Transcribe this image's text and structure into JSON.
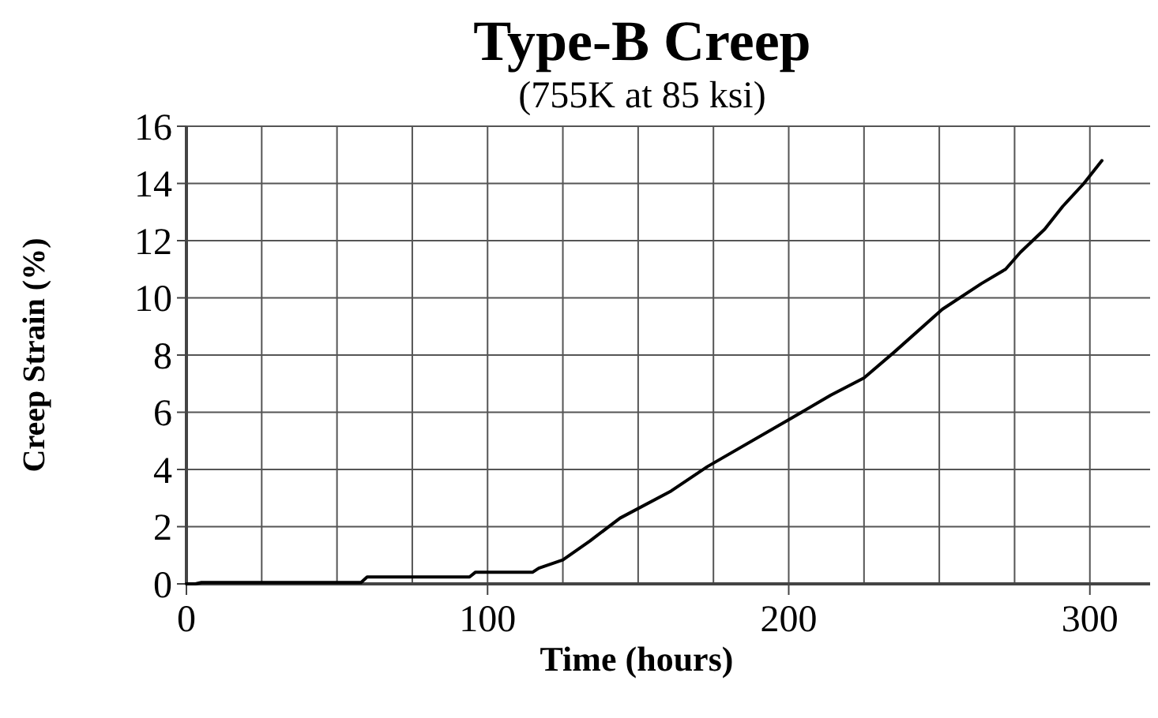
{
  "chart_data": {
    "type": "line",
    "title": "Type-B Creep",
    "subtitle": "(755K at 85 ksi)",
    "xlabel": "Time (hours)",
    "ylabel": "Creep Strain (%)",
    "xlim": [
      0,
      320
    ],
    "xticks": [
      0,
      {
        "value": 25,
        "label": null
      },
      {
        "value": 50,
        "label": null
      },
      {
        "value": 75,
        "label": null
      },
      100,
      {
        "value": 125,
        "label": null
      },
      {
        "value": 150,
        "label": null
      },
      {
        "value": 175,
        "label": null
      },
      200,
      {
        "value": 225,
        "label": null
      },
      {
        "value": 250,
        "label": null
      },
      {
        "value": 275,
        "label": null
      },
      300
    ],
    "ylim": [
      0,
      16
    ],
    "yticks": [
      0,
      2,
      4,
      6,
      8,
      10,
      12,
      14,
      16
    ],
    "grid": true,
    "marker": "none",
    "line_style": "solid",
    "series": [
      {
        "color": "#000000",
        "x": [
          0,
          3,
          5,
          58,
          60,
          94,
          96,
          115,
          117,
          125,
          134,
          144,
          161,
          173,
          201,
          214,
          225,
          235,
          251,
          264,
          272,
          277,
          285,
          291,
          298,
          304
        ],
        "values": [
          0,
          0,
          0.05,
          0.05,
          0.24,
          0.24,
          0.41,
          0.41,
          0.55,
          0.84,
          1.5,
          2.3,
          3.25,
          4.1,
          5.8,
          6.6,
          7.2,
          8.1,
          9.6,
          10.5,
          11.0,
          11.6,
          12.4,
          13.2,
          14.0,
          14.8
        ]
      }
    ]
  }
}
